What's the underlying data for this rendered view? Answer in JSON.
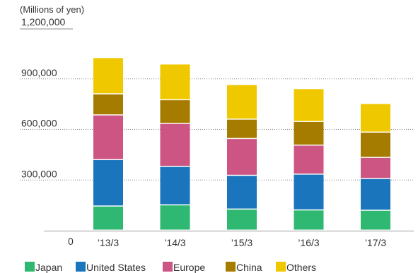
{
  "chart_data": {
    "type": "bar",
    "stacked": true,
    "unit_label": "(Millions of yen)",
    "title": "",
    "xlabel": "",
    "ylabel": "",
    "categories": [
      "’13/3",
      "’14/3",
      "’15/3",
      "’16/3",
      "’17/3"
    ],
    "ylim": [
      0,
      1200000
    ],
    "yticks": [
      0,
      300000,
      600000,
      900000,
      1200000
    ],
    "ytick_labels": [
      "0",
      "300,000",
      "600,000",
      "900,000",
      "1,200,000"
    ],
    "grid": "horizontal-dotted",
    "legend_position": "bottom",
    "series": [
      {
        "name": "Japan",
        "color": "#2eb872",
        "values": [
          143000,
          150000,
          125000,
          120000,
          118000
        ]
      },
      {
        "name": "United States",
        "color": "#1a75bc",
        "values": [
          275000,
          228000,
          200000,
          212000,
          188000
        ]
      },
      {
        "name": "Europe",
        "color": "#cc5583",
        "values": [
          265000,
          255000,
          218000,
          172000,
          125000
        ]
      },
      {
        "name": "China",
        "color": "#a67c00",
        "values": [
          125000,
          140000,
          115000,
          140000,
          150000
        ]
      },
      {
        "name": "Others",
        "color": "#f0c800",
        "values": [
          215000,
          212000,
          205000,
          195000,
          170000
        ]
      }
    ]
  }
}
